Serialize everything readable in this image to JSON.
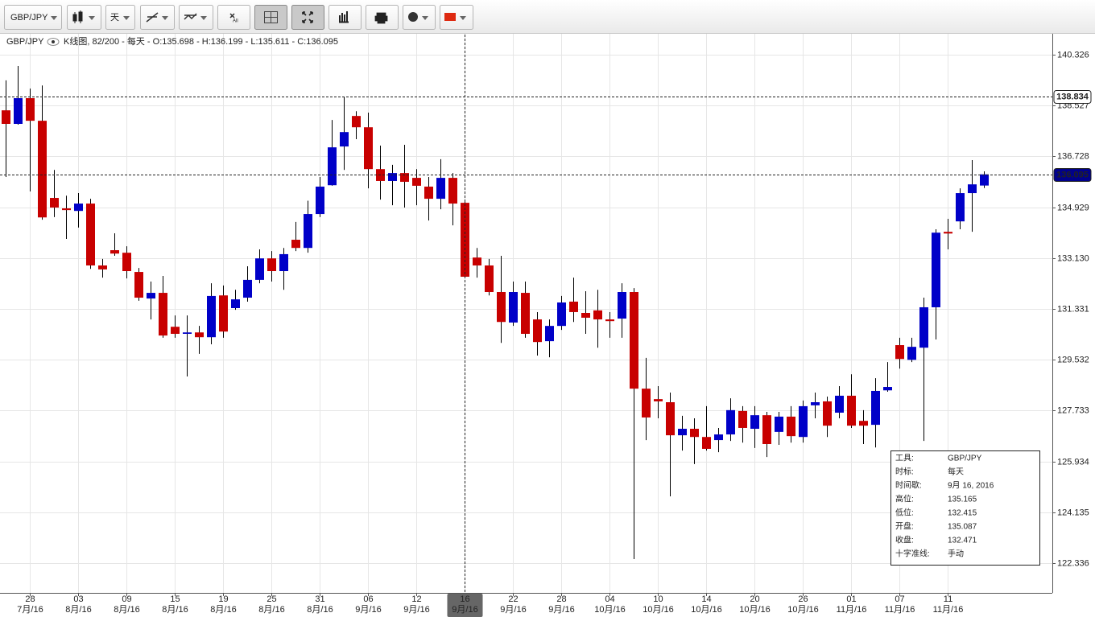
{
  "toolbar": {
    "symbol": "GBP/JPY",
    "period": "天",
    "all_label": "All"
  },
  "chart_data": {
    "type": "candlestick",
    "title": "GBP/JPY",
    "subtitle": "K线图, 82/200 - 每天 - O:135.698 - H:136.199 - L:135.611 - C:136.095",
    "categories": [
      null,
      null,
      "28 7月/16",
      null,
      null,
      null,
      "03 8月/16",
      null,
      null,
      null,
      "09 8月/16",
      null,
      null,
      null,
      "15 8月/16",
      null,
      null,
      null,
      "19 8月/16",
      null,
      null,
      null,
      "25 8月/16",
      null,
      null,
      null,
      "31 8月/16",
      null,
      null,
      null,
      "06 9月/16",
      null,
      null,
      null,
      "12 9月/16",
      null,
      null,
      null,
      "16 9月/16",
      null,
      null,
      null,
      "22 9月/16",
      null,
      null,
      null,
      "28 9月/16",
      null,
      null,
      null,
      "04 10月/16",
      null,
      null,
      null,
      "10 10月/16",
      null,
      null,
      null,
      "14 10月/16",
      null,
      null,
      null,
      "20 10月/16",
      null,
      null,
      null,
      "26 10月/16",
      null,
      null,
      null,
      "01 11月/16",
      null,
      null,
      null,
      "07 11月/16",
      null,
      null,
      null,
      "11 11月/16",
      null,
      null,
      null
    ],
    "open": [
      138.36,
      137.88,
      138.79,
      137.99,
      135.26,
      134.89,
      134.8,
      135.06,
      132.87,
      133.41,
      133.32,
      132.64,
      131.7,
      131.9,
      130.7,
      130.45,
      130.5,
      130.33,
      131.81,
      131.36,
      131.73,
      132.36,
      133.12,
      132.67,
      133.78,
      133.49,
      134.69,
      135.71,
      137.08,
      138.16,
      137.76,
      136.28,
      135.86,
      136.14,
      135.97,
      135.66,
      135.23,
      135.97,
      135.087,
      133.15,
      132.87,
      131.93,
      130.85,
      131.9,
      130.96,
      130.19,
      130.73,
      131.59,
      131.19,
      131.28,
      130.96,
      130.99,
      131.93,
      128.51,
      128.14,
      128.03,
      126.86,
      127.09,
      126.8,
      126.69,
      126.89,
      127.72,
      127.09,
      127.57,
      126.98,
      127.52,
      126.8,
      127.92,
      128.06,
      127.66,
      128.26,
      127.37,
      127.23,
      128.45,
      130.05,
      129.53,
      129.96,
      131.39,
      134.06,
      134.43,
      135.43,
      135.698
    ],
    "high": [
      139.42,
      139.93,
      139.13,
      139.24,
      136.25,
      135.34,
      135.43,
      135.23,
      133.1,
      134.01,
      133.55,
      132.78,
      132.3,
      132.5,
      131.1,
      131.1,
      130.73,
      132.24,
      132.16,
      132.01,
      132.84,
      133.44,
      133.38,
      133.49,
      134.41,
      135.16,
      136.0,
      138.02,
      138.82,
      138.33,
      138.28,
      137.11,
      136.43,
      137.14,
      136.28,
      136.0,
      136.63,
      136.14,
      135.165,
      133.49,
      133.1,
      133.21,
      132.3,
      132.3,
      131.22,
      130.96,
      131.79,
      132.44,
      131.96,
      132.01,
      131.22,
      132.24,
      132.07,
      129.6,
      128.6,
      128.37,
      127.55,
      127.46,
      127.89,
      127.12,
      128.17,
      127.89,
      127.89,
      127.69,
      127.69,
      127.89,
      128.09,
      128.37,
      128.23,
      128.6,
      129.02,
      127.75,
      128.88,
      129.45,
      130.31,
      130.31,
      131.73,
      134.15,
      134.52,
      135.6,
      136.6,
      136.199
    ],
    "low": [
      136.0,
      137.85,
      135.49,
      134.49,
      134.58,
      133.81,
      134.21,
      132.75,
      132.44,
      133.21,
      132.41,
      131.62,
      130.96,
      130.31,
      130.31,
      128.94,
      129.74,
      130.08,
      130.31,
      131.3,
      131.59,
      132.24,
      132.3,
      132.01,
      133.38,
      133.32,
      134.58,
      135.69,
      136.25,
      137.34,
      135.6,
      135.2,
      135.0,
      134.92,
      135.0,
      134.46,
      134.86,
      134.29,
      132.415,
      132.44,
      131.81,
      130.13,
      130.73,
      130.31,
      129.68,
      129.62,
      130.59,
      130.87,
      130.45,
      129.96,
      130.31,
      130.31,
      122.48,
      126.69,
      127.46,
      124.7,
      126.32,
      125.84,
      126.32,
      126.26,
      126.66,
      126.6,
      126.41,
      126.09,
      126.52,
      126.6,
      126.6,
      127.46,
      126.8,
      127.46,
      127.12,
      126.55,
      126.43,
      128.4,
      129.22,
      129.45,
      126.66,
      130.25,
      133.44,
      134.15,
      134.06,
      135.611
    ],
    "close": [
      137.88,
      138.79,
      137.99,
      134.57,
      134.92,
      134.83,
      135.06,
      132.87,
      132.73,
      133.29,
      132.67,
      131.73,
      131.9,
      130.39,
      130.45,
      130.5,
      130.33,
      131.79,
      130.53,
      131.67,
      132.36,
      133.12,
      132.67,
      133.27,
      133.49,
      134.69,
      135.66,
      137.05,
      137.59,
      137.76,
      136.28,
      135.86,
      136.14,
      135.83,
      135.69,
      135.23,
      135.97,
      135.06,
      132.471,
      132.87,
      131.93,
      130.87,
      131.93,
      130.45,
      130.16,
      130.73,
      131.56,
      131.22,
      131.02,
      130.96,
      130.9,
      131.93,
      128.51,
      127.49,
      128.06,
      126.86,
      127.09,
      126.8,
      126.38,
      126.89,
      127.75,
      127.12,
      127.57,
      126.55,
      127.52,
      126.83,
      127.89,
      128.03,
      127.2,
      128.26,
      127.2,
      127.2,
      128.43,
      128.57,
      129.56,
      129.99,
      131.39,
      134.03,
      134.0,
      135.43,
      135.74,
      136.095
    ],
    "up_color": "#0000c8",
    "down_color": "#c80000",
    "ylim": [
      121.283,
      141.04
    ],
    "yticks": [
      {
        "value": 122.336,
        "label": "122.336"
      },
      {
        "value": 124.135,
        "label": "124.135"
      },
      {
        "value": 125.934,
        "label": "125.934"
      },
      {
        "value": 127.733,
        "label": "127.733"
      },
      {
        "value": 129.532,
        "label": "129.532"
      },
      {
        "value": 131.331,
        "label": "131.331"
      },
      {
        "value": 133.13,
        "label": "133.130"
      },
      {
        "value": 134.929,
        "label": "134.929"
      },
      {
        "value": 136.728,
        "label": "136.728"
      },
      {
        "value": 138.527,
        "label": "138.527"
      },
      {
        "value": 140.326,
        "label": "140.326"
      }
    ],
    "grid": true,
    "reference_lines": [
      {
        "value": 138.834,
        "color": "#ffffff",
        "text_color": "#000000"
      },
      {
        "value": 136.095,
        "color": "#00008b",
        "text_color": "#ffffff"
      }
    ],
    "crosshair_index": 38,
    "info_box": {
      "rows": [
        {
          "key": "工具:",
          "value": "GBP/JPY"
        },
        {
          "key": "时标:",
          "value": "每天"
        },
        {
          "key": "时间歇:",
          "value": "9月 16, 2016"
        },
        {
          "key": "高位:",
          "value": "135.165"
        },
        {
          "key": "低位:",
          "value": "132.415"
        },
        {
          "key": "开盘:",
          "value": "135.087"
        },
        {
          "key": "收盘:",
          "value": "132.471"
        },
        {
          "key": "十字准线:",
          "value": "手动"
        }
      ]
    }
  }
}
